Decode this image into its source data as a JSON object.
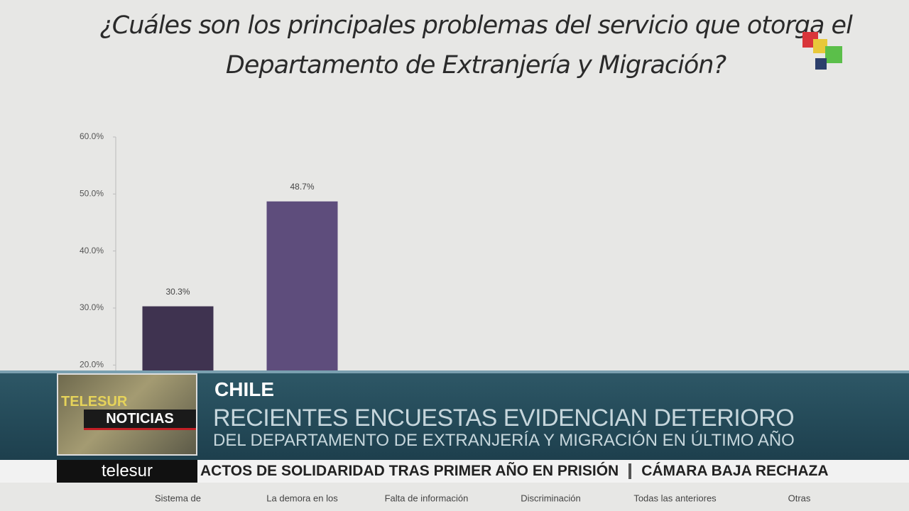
{
  "chart_data": {
    "type": "bar",
    "title": "¿Cuáles son los principales problemas del servicio que otorga el Departamento de Extranjería y Migración?",
    "categories": [
      "Sistema de",
      "La demora en los",
      "Falta de información",
      "Discriminación",
      "Todas las anteriores",
      "Otras"
    ],
    "values": [
      30.3,
      48.7,
      null,
      null,
      null,
      null
    ],
    "value_labels": [
      "30.3%",
      "48.7%",
      null,
      null,
      null,
      null
    ],
    "colors": [
      "#3f3350",
      "#5e4d7c"
    ],
    "ylim": [
      0,
      60
    ],
    "yticks": [
      {
        "value": 20,
        "label": "20.0%"
      },
      {
        "value": 30,
        "label": "30.0%"
      },
      {
        "value": 40,
        "label": "40.0%"
      },
      {
        "value": 50,
        "label": "50.0%"
      },
      {
        "value": 60,
        "label": "60.0%"
      }
    ]
  },
  "overlay": {
    "country": "CHILE",
    "headline": "RECIENTES ENCUESTAS EVIDENCIAN DETERIORO",
    "subline": "DEL DEPARTAMENTO DE EXTRANJERÍA Y MIGRACIÓN EN ÚLTIMO AÑO",
    "logo_top": "TELESUR",
    "logo_bottom": "NOTICIAS",
    "brand": "telesur",
    "ticker": [
      "ACTOS DE SOLIDARIDAD TRAS PRIMER AÑO EN PRISIÓN",
      "CÁMARA BAJA RECHAZA"
    ]
  }
}
